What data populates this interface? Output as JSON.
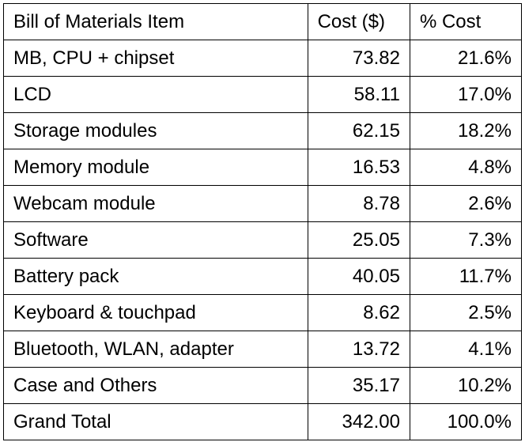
{
  "table": {
    "headers": [
      "Bill of Materials Item",
      "Cost ($)",
      "% Cost"
    ],
    "rows": [
      {
        "item": "MB, CPU + chipset",
        "cost": "73.82",
        "pct": "21.6%"
      },
      {
        "item": "LCD",
        "cost": "58.11",
        "pct": "17.0%"
      },
      {
        "item": "Storage modules",
        "cost": "62.15",
        "pct": "18.2%"
      },
      {
        "item": "Memory module",
        "cost": "16.53",
        "pct": "4.8%"
      },
      {
        "item": "Webcam module",
        "cost": "8.78",
        "pct": "2.6%"
      },
      {
        "item": "Software",
        "cost": "25.05",
        "pct": "7.3%"
      },
      {
        "item": "Battery pack",
        "cost": "40.05",
        "pct": "11.7%"
      },
      {
        "item": "Keyboard & touchpad",
        "cost": "8.62",
        "pct": "2.5%"
      },
      {
        "item": "Bluetooth, WLAN, adapter",
        "cost": "13.72",
        "pct": "4.1%"
      },
      {
        "item": "Case and Others",
        "cost": "35.17",
        "pct": "10.2%"
      },
      {
        "item": "Grand Total",
        "cost": "342.00",
        "pct": "100.0%"
      }
    ]
  }
}
